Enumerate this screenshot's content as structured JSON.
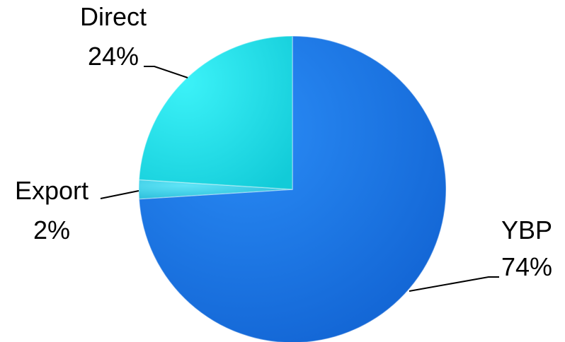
{
  "chart_data": {
    "type": "pie",
    "title": "",
    "slices": [
      {
        "label": "YBP",
        "value": 74,
        "percent_label": "74%",
        "color": "#1f73e6"
      },
      {
        "label": "Export",
        "value": 2,
        "percent_label": "2%",
        "color": "#3fd6ee"
      },
      {
        "label": "Direct",
        "value": 24,
        "percent_label": "24%",
        "color": "#19e6ee"
      }
    ],
    "start_angle": "12 o'clock",
    "direction": "clockwise",
    "legend": "none",
    "data_labels": "outside with leader lines"
  }
}
